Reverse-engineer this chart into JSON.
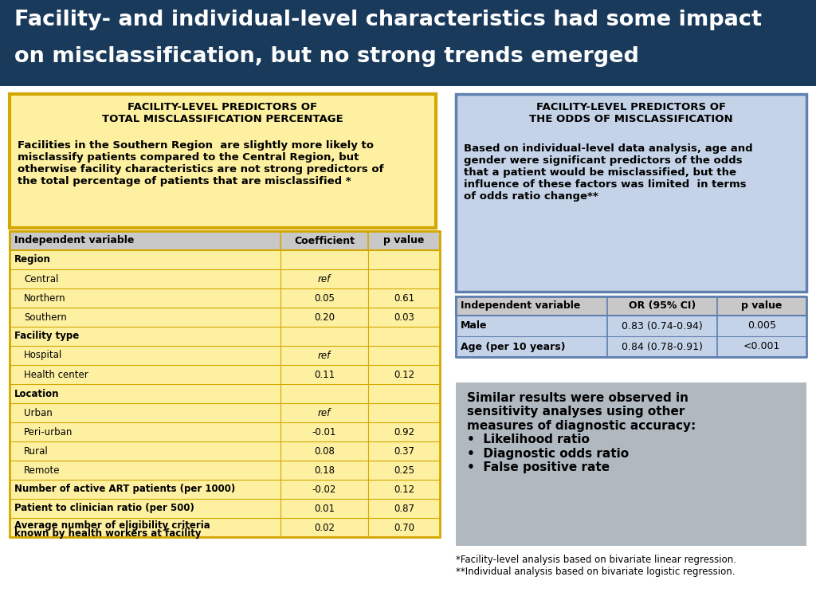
{
  "title_line1": "Facility- and individual-level characteristics had some impact",
  "title_line2": "on misclassification, but no strong trends emerged",
  "title_bg": "#1a3a5c",
  "title_color": "#ffffff",
  "left_box_bg": "#fdf0a0",
  "left_box_border": "#d4a800",
  "left_box_title": "FACILITY-LEVEL PREDICTORS OF\nTOTAL MISCLASSIFICATION PERCENTAGE",
  "left_box_text": "Facilities in the Southern Region  are slightly more likely to\nmisclassify patients compared to the Central Region, but\notherwise facility characteristics are not strong predictors of\nthe total percentage of patients that are misclassified *",
  "right_top_box_bg": "#c5d3e8",
  "right_top_box_border": "#6080b0",
  "right_top_box_title": "FACILITY-LEVEL PREDICTORS OF\nTHE ODDS OF MISCLASSIFICATION",
  "right_top_box_text": "Based on individual-level data analysis, age and\ngender were significant predictors of the odds\nthat a patient would be misclassified, but the\ninfluence of these factors was limited  in terms\nof odds ratio change**",
  "right_bottom_box_bg": "#b0b8c0",
  "right_bottom_box_text": "Similar results were observed in\nsensitivity analyses using other\nmeasures of diagnostic accuracy:\n•  Likelihood ratio\n•  Diagnostic odds ratio\n•  False positive rate",
  "footnote": "*Facility-level analysis based on bivariate linear regression.\n**Individual analysis based on bivariate logistic regression.",
  "table_header_bg": "#c8c8c8",
  "left_table": {
    "headers": [
      "Independent variable",
      "Coefficient",
      "p value"
    ],
    "rows": [
      {
        "label": "Region",
        "coef": "",
        "pval": "",
        "bold": true,
        "indent": 0
      },
      {
        "label": "Central",
        "coef": "ref",
        "pval": "",
        "bold": false,
        "indent": 1,
        "italic_coef": true
      },
      {
        "label": "Northern",
        "coef": "0.05",
        "pval": "0.61",
        "bold": false,
        "indent": 1
      },
      {
        "label": "Southern",
        "coef": "0.20",
        "pval": "0.03",
        "bold": false,
        "indent": 1
      },
      {
        "label": "Facility type",
        "coef": "",
        "pval": "",
        "bold": true,
        "indent": 0
      },
      {
        "label": "Hospital",
        "coef": "ref",
        "pval": "",
        "bold": false,
        "indent": 1,
        "italic_coef": true
      },
      {
        "label": "Health center",
        "coef": "0.11",
        "pval": "0.12",
        "bold": false,
        "indent": 1
      },
      {
        "label": "Location",
        "coef": "",
        "pval": "",
        "bold": true,
        "indent": 0
      },
      {
        "label": "Urban",
        "coef": "ref",
        "pval": "",
        "bold": false,
        "indent": 1,
        "italic_coef": true
      },
      {
        "label": "Peri-urban",
        "coef": "-0.01",
        "pval": "0.92",
        "bold": false,
        "indent": 1
      },
      {
        "label": "Rural",
        "coef": "0.08",
        "pval": "0.37",
        "bold": false,
        "indent": 1
      },
      {
        "label": "Remote",
        "coef": "0.18",
        "pval": "0.25",
        "bold": false,
        "indent": 1
      },
      {
        "label": "Number of active ART patients (per 1000)",
        "coef": "-0.02",
        "pval": "0.12",
        "bold": true,
        "indent": 0
      },
      {
        "label": "Patient to clinician ratio (per 500)",
        "coef": "0.01",
        "pval": "0.87",
        "bold": true,
        "indent": 0
      },
      {
        "label": "Average number of eligibility criteria\nknown by health workers at facility",
        "coef": "0.02",
        "pval": "0.70",
        "bold": true,
        "indent": 0
      }
    ]
  },
  "right_table": {
    "headers": [
      "Independent variable",
      "OR (95% CI)",
      "p value"
    ],
    "rows": [
      {
        "label": "Male",
        "or_ci": "0.83 (0.74-0.94)",
        "pval": "0.005",
        "bold": true
      },
      {
        "label": "Age (per 10 years)",
        "or_ci": "0.84 (0.78-0.91)",
        "pval": "<0.001",
        "bold": true
      }
    ]
  }
}
